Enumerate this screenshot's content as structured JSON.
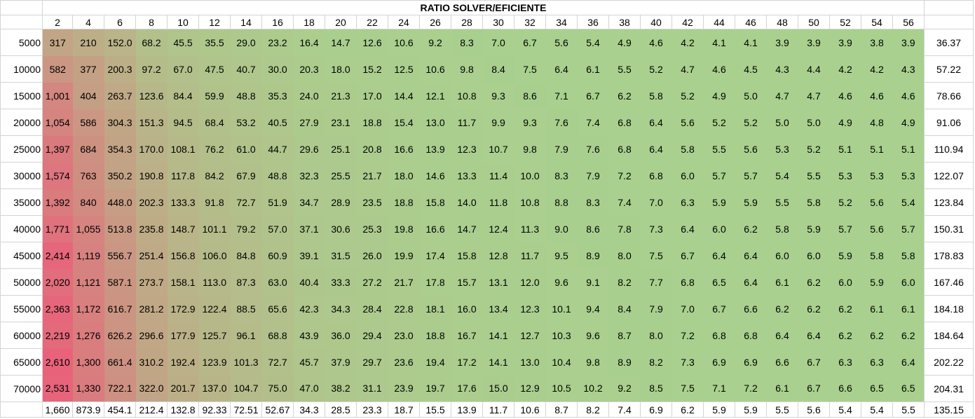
{
  "title": "RATIO SOLVER/EFICIENTE",
  "columns": [
    "2",
    "4",
    "6",
    "8",
    "10",
    "12",
    "14",
    "16",
    "18",
    "20",
    "22",
    "24",
    "26",
    "28",
    "30",
    "32",
    "34",
    "36",
    "38",
    "40",
    "42",
    "44",
    "46",
    "48",
    "50",
    "52",
    "54",
    "56"
  ],
  "rows": [
    {
      "label": "5000",
      "values": [
        "317",
        "210",
        "152.0",
        "68.2",
        "45.5",
        "35.5",
        "29.0",
        "23.2",
        "16.4",
        "14.7",
        "12.6",
        "10.6",
        "9.2",
        "8.3",
        "7.0",
        "6.7",
        "5.6",
        "5.4",
        "4.9",
        "4.6",
        "4.2",
        "4.1",
        "4.1",
        "3.9",
        "3.9",
        "3.9",
        "3.8",
        "3.9"
      ],
      "total": "36.37"
    },
    {
      "label": "10000",
      "values": [
        "582",
        "377",
        "200.3",
        "97.2",
        "67.0",
        "47.5",
        "40.7",
        "30.0",
        "20.3",
        "18.0",
        "15.2",
        "12.5",
        "10.6",
        "9.8",
        "8.4",
        "7.5",
        "6.4",
        "6.1",
        "5.5",
        "5.2",
        "4.7",
        "4.6",
        "4.5",
        "4.3",
        "4.4",
        "4.2",
        "4.2",
        "4.3"
      ],
      "total": "57.22"
    },
    {
      "label": "15000",
      "values": [
        "1,001",
        "404",
        "263.7",
        "123.6",
        "84.4",
        "59.9",
        "48.8",
        "35.3",
        "24.0",
        "21.3",
        "17.0",
        "14.4",
        "12.1",
        "10.8",
        "9.3",
        "8.6",
        "7.1",
        "6.7",
        "6.2",
        "5.8",
        "5.2",
        "4.9",
        "5.0",
        "4.7",
        "4.7",
        "4.6",
        "4.6",
        "4.6"
      ],
      "total": "78.66"
    },
    {
      "label": "20000",
      "values": [
        "1,054",
        "586",
        "304.3",
        "151.3",
        "94.5",
        "68.4",
        "53.2",
        "40.5",
        "27.9",
        "23.1",
        "18.8",
        "15.4",
        "13.0",
        "11.7",
        "9.9",
        "9.3",
        "7.6",
        "7.4",
        "6.8",
        "6.4",
        "5.6",
        "5.2",
        "5.2",
        "5.0",
        "5.0",
        "4.9",
        "4.8",
        "4.9"
      ],
      "total": "91.06"
    },
    {
      "label": "25000",
      "values": [
        "1,397",
        "684",
        "354.3",
        "170.0",
        "108.1",
        "76.2",
        "61.0",
        "44.7",
        "29.6",
        "25.1",
        "20.8",
        "16.6",
        "13.9",
        "12.3",
        "10.7",
        "9.8",
        "7.9",
        "7.6",
        "6.8",
        "6.4",
        "5.8",
        "5.5",
        "5.6",
        "5.3",
        "5.2",
        "5.1",
        "5.1",
        "5.1"
      ],
      "total": "110.94"
    },
    {
      "label": "30000",
      "values": [
        "1,574",
        "763",
        "350.2",
        "190.8",
        "117.8",
        "84.2",
        "67.9",
        "48.8",
        "32.3",
        "25.5",
        "21.7",
        "18.0",
        "14.6",
        "13.3",
        "11.4",
        "10.0",
        "8.3",
        "7.9",
        "7.2",
        "6.8",
        "6.0",
        "5.7",
        "5.7",
        "5.4",
        "5.5",
        "5.3",
        "5.3",
        "5.3"
      ],
      "total": "122.07"
    },
    {
      "label": "35000",
      "values": [
        "1,392",
        "840",
        "448.0",
        "202.3",
        "133.3",
        "91.8",
        "72.7",
        "51.9",
        "34.7",
        "28.9",
        "23.5",
        "18.8",
        "15.8",
        "14.0",
        "11.8",
        "10.8",
        "8.8",
        "8.3",
        "7.4",
        "7.0",
        "6.3",
        "5.9",
        "5.9",
        "5.5",
        "5.8",
        "5.2",
        "5.6",
        "5.4"
      ],
      "total": "123.84"
    },
    {
      "label": "40000",
      "values": [
        "1,771",
        "1,055",
        "513.8",
        "235.8",
        "148.7",
        "101.1",
        "79.2",
        "57.0",
        "37.1",
        "30.6",
        "25.3",
        "19.8",
        "16.6",
        "14.7",
        "12.4",
        "11.3",
        "9.0",
        "8.6",
        "7.8",
        "7.3",
        "6.4",
        "6.0",
        "6.2",
        "5.8",
        "5.9",
        "5.7",
        "5.6",
        "5.7"
      ],
      "total": "150.31"
    },
    {
      "label": "45000",
      "values": [
        "2,414",
        "1,119",
        "556.7",
        "251.4",
        "156.8",
        "106.0",
        "84.8",
        "60.9",
        "39.1",
        "31.5",
        "26.0",
        "19.9",
        "17.4",
        "15.8",
        "12.8",
        "11.7",
        "9.5",
        "8.9",
        "8.0",
        "7.5",
        "6.7",
        "6.4",
        "6.4",
        "6.0",
        "6.0",
        "5.9",
        "5.8",
        "5.8"
      ],
      "total": "178.83"
    },
    {
      "label": "50000",
      "values": [
        "2,020",
        "1,121",
        "587.1",
        "273.7",
        "158.1",
        "113.0",
        "87.3",
        "63.0",
        "40.4",
        "33.3",
        "27.2",
        "21.7",
        "17.8",
        "15.7",
        "13.1",
        "12.0",
        "9.6",
        "9.1",
        "8.2",
        "7.7",
        "6.8",
        "6.5",
        "6.4",
        "6.1",
        "6.2",
        "6.0",
        "5.9",
        "6.0"
      ],
      "total": "167.46"
    },
    {
      "label": "55000",
      "values": [
        "2,363",
        "1,172",
        "616.7",
        "281.2",
        "172.9",
        "122.4",
        "88.5",
        "65.6",
        "42.3",
        "34.3",
        "28.4",
        "22.8",
        "18.1",
        "16.0",
        "13.4",
        "12.3",
        "10.1",
        "9.4",
        "8.4",
        "7.9",
        "7.0",
        "6.7",
        "6.6",
        "6.2",
        "6.2",
        "6.2",
        "6.1",
        "6.1"
      ],
      "total": "184.18"
    },
    {
      "label": "60000",
      "values": [
        "2,219",
        "1,276",
        "626.2",
        "296.6",
        "177.9",
        "125.7",
        "96.1",
        "68.8",
        "43.9",
        "36.0",
        "29.4",
        "23.0",
        "18.8",
        "16.7",
        "14.1",
        "12.7",
        "10.3",
        "9.6",
        "8.7",
        "8.0",
        "7.2",
        "6.8",
        "6.8",
        "6.4",
        "6.4",
        "6.2",
        "6.2",
        "6.2"
      ],
      "total": "184.64"
    },
    {
      "label": "65000",
      "values": [
        "2,610",
        "1,300",
        "661.4",
        "310.2",
        "192.4",
        "123.9",
        "101.3",
        "72.7",
        "45.7",
        "37.9",
        "29.7",
        "23.6",
        "19.4",
        "17.2",
        "14.1",
        "13.0",
        "10.4",
        "9.8",
        "8.9",
        "8.2",
        "7.3",
        "6.9",
        "6.9",
        "6.6",
        "6.7",
        "6.3",
        "6.3",
        "6.4"
      ],
      "total": "202.22"
    },
    {
      "label": "70000",
      "values": [
        "2,531",
        "1,330",
        "722.1",
        "322.0",
        "201.7",
        "137.0",
        "104.7",
        "75.0",
        "47.0",
        "38.2",
        "31.1",
        "23.9",
        "19.7",
        "17.6",
        "15.0",
        "12.9",
        "10.5",
        "10.2",
        "9.2",
        "8.5",
        "7.5",
        "7.1",
        "7.2",
        "6.1",
        "6.7",
        "6.6",
        "6.5",
        "6.5"
      ],
      "total": "204.31"
    }
  ],
  "footer": [
    "1,660",
    "873.9",
    "454.1",
    "212.4",
    "132.8",
    "92.33",
    "72.51",
    "52.67",
    "34.3",
    "28.5",
    "23.3",
    "18.7",
    "15.5",
    "13.9",
    "11.7",
    "10.6",
    "8.7",
    "8.2",
    "7.4",
    "6.9",
    "6.2",
    "5.9",
    "5.9",
    "5.5",
    "5.6",
    "5.4",
    "5.4",
    "5.5"
  ],
  "footer_total": "135.15",
  "colors": {
    "scale_low": "#a9d08e",
    "scale_high": "#e8637a",
    "grid": "#d4d4d4"
  }
}
